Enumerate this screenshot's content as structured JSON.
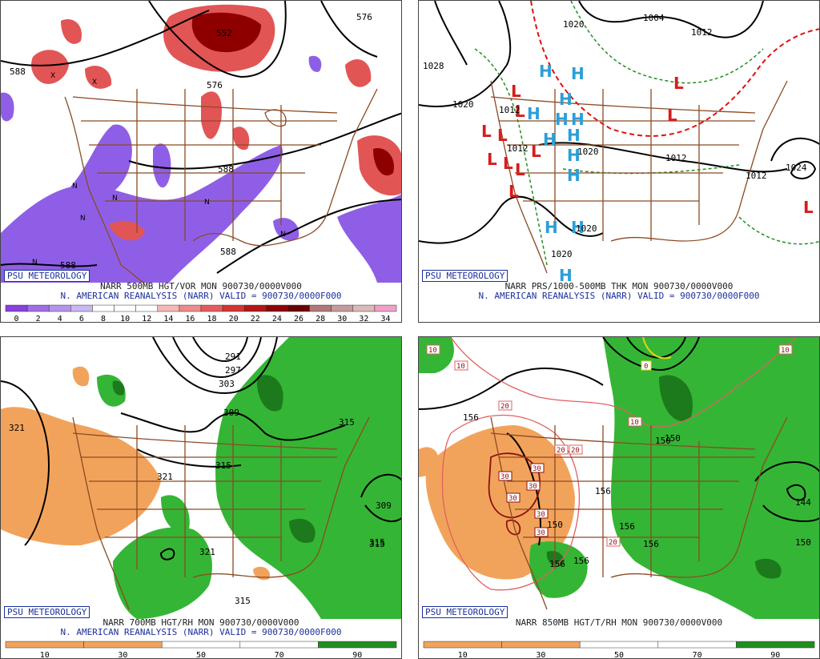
{
  "org_label": "PSU METEOROLOGY",
  "panels": [
    {
      "caption1": "NARR 500MB HGT/VOR MON 900730/0000V000",
      "caption2": "N. AMERICAN REANALYSIS (NARR) VALID = 900730/0000F000",
      "colorbar": {
        "labels": [
          "0",
          "2",
          "4",
          "6",
          "8",
          "10",
          "12",
          "14",
          "16",
          "18",
          "20",
          "22",
          "24",
          "26",
          "28",
          "30",
          "32",
          "34"
        ],
        "colors": [
          "#8a3fe0",
          "#a06ce8",
          "#b493ef",
          "#cbb6f5",
          "#ffffff",
          "#ffffff",
          "#ffffff",
          "#f7b6b6",
          "#ef8a8a",
          "#e55b5b",
          "#d23434",
          "#b31616",
          "#8e0404",
          "#6b0000",
          "#b0787a",
          "#c49a9c",
          "#dab9bb",
          "#f0a0c8"
        ]
      },
      "contour_labels": [
        "588",
        "576",
        "552",
        "576",
        "588",
        "588",
        "588"
      ]
    },
    {
      "caption1": "NARR PRS/1000-500MB THK MON 900730/0000V000",
      "caption2": "N. AMERICAN REANALYSIS (NARR) VALID = 900730/0000F000",
      "contour_labels": [
        "1004",
        "1020",
        "1012",
        "1028",
        "1020",
        "1012",
        "1012",
        "1020",
        "1012",
        "1012",
        "1024",
        "1020",
        "1020"
      ]
    },
    {
      "caption1": "NARR 700MB HGT/RH MON 900730/0000V000",
      "caption2": "N. AMERICAN REANALYSIS (NARR) VALID = 900730/0000F000",
      "colorbar": {
        "labels": [
          "10",
          "30",
          "50",
          "70",
          "90"
        ],
        "colors": [
          "#f0a35a",
          "#f0a35a",
          "#ffffff",
          "#ffffff",
          "#1e8f1e"
        ]
      },
      "contour_labels": [
        "291",
        "297",
        "303",
        "309",
        "315",
        "321",
        "321",
        "315",
        "315",
        "309",
        "315",
        "321",
        "315"
      ]
    },
    {
      "caption1": "NARR 850MB HGT/T/RH MON 900730/0000V000",
      "caption2": "",
      "colorbar": {
        "labels": [
          "10",
          "30",
          "50",
          "70",
          "90"
        ],
        "colors": [
          "#f0a35a",
          "#f0a35a",
          "#ffffff",
          "#ffffff",
          "#1e8f1e"
        ]
      },
      "contour_labels": [
        "156",
        "150",
        "156",
        "150",
        "156",
        "156",
        "156",
        "156",
        "144",
        "150",
        "150"
      ],
      "temp_labels": [
        "10",
        "0",
        "10",
        "20",
        "20",
        "20",
        "30",
        "30",
        "30",
        "30",
        "30",
        "30",
        "20",
        "10",
        "10"
      ]
    }
  ],
  "colors": {
    "vort_low": "#8e5fe6",
    "vort_high": "#e25555",
    "vort_max": "#8e0000",
    "rh_dry": "#f2a35b",
    "rh_moist": "#35b535",
    "rh_very_moist": "#1c7a1c",
    "map_lines": "#8b4a24",
    "high_marker": "#2a9fd9",
    "low_marker": "#d81c1c",
    "caption_blue": "#1b2f9c"
  },
  "markers": {
    "high": "H",
    "low": "L",
    "vort_max": "X",
    "vort_min": "N"
  }
}
